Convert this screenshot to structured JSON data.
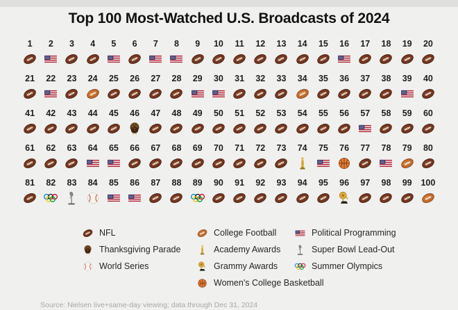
{
  "title": "Top 100 Most-Watched U.S. Broadcasts of 2024",
  "footnote": "Source: Nielsen live+same-day viewing; data through Dec 31, 2024",
  "chart_data": {
    "type": "pictogram",
    "title": "Top 100 Most-Watched U.S. Broadcasts of 2024",
    "rank_range": [
      1,
      100
    ],
    "categories_by_rank": [
      "F",
      "P",
      "F",
      "F",
      "P",
      "F",
      "P",
      "P",
      "F",
      "F",
      "F",
      "F",
      "F",
      "F",
      "F",
      "P",
      "F",
      "F",
      "F",
      "F",
      "F",
      "P",
      "F",
      "C",
      "F",
      "F",
      "F",
      "F",
      "P",
      "P",
      "F",
      "F",
      "F",
      "C",
      "F",
      "F",
      "F",
      "F",
      "P",
      "F",
      "F",
      "F",
      "F",
      "F",
      "F",
      "T",
      "F",
      "F",
      "F",
      "F",
      "F",
      "F",
      "F",
      "F",
      "F",
      "F",
      "P",
      "F",
      "F",
      "F",
      "F",
      "F",
      "F",
      "P",
      "P",
      "F",
      "F",
      "F",
      "F",
      "F",
      "F",
      "F",
      "F",
      "O",
      "P",
      "K",
      "F",
      "P",
      "C",
      "F",
      "F",
      "Y",
      "M",
      "B",
      "P",
      "P",
      "F",
      "F",
      "Y",
      "F",
      "F",
      "F",
      "F",
      "F",
      "F",
      "G",
      "F",
      "F",
      "F",
      "C"
    ],
    "code_labels": {
      "F": "NFL",
      "P": "Political Programming",
      "C": "College Football",
      "T": "Thanksgiving Parade",
      "B": "World Series",
      "O": "Academy Awards",
      "K": "Women's College Basketball",
      "Y": "Summer Olympics",
      "M": "Super Bowl Lead-Out",
      "G": "Grammy Awards"
    },
    "category_counts": {
      "NFL": 72,
      "Political Programming": 16,
      "College Football": 4,
      "Summer Olympics": 2,
      "Thanksgiving Parade": 1,
      "World Series": 1,
      "Academy Awards": 1,
      "Grammy Awards": 1,
      "Women's College Basketball": 1,
      "Super Bowl Lead-Out": 1
    },
    "legend_position": "bottom"
  },
  "grid": {
    "columns": 20,
    "rows": 5,
    "icon_by_code": {
      "F": "nfl-football",
      "P": "us-flag",
      "C": "college-football",
      "T": "turkey",
      "B": "baseball",
      "O": "oscar-statuette",
      "K": "basketball",
      "Y": "olympic-rings",
      "M": "microphone",
      "G": "grammy-gramophone"
    }
  },
  "legend": {
    "columns": [
      {
        "items": [
          {
            "icon": "nfl-football",
            "label": "NFL"
          },
          {
            "icon": "turkey",
            "label": "Thanksgiving Parade"
          },
          {
            "icon": "baseball",
            "label": "World Series"
          }
        ]
      },
      {
        "items": [
          {
            "icon": "college-football",
            "label": "College Football"
          },
          {
            "icon": "oscar-statuette",
            "label": "Academy Awards"
          },
          {
            "icon": "grammy-gramophone",
            "label": "Grammy Awards"
          },
          {
            "icon": "basketball",
            "label": "Women's College Basketball"
          }
        ]
      },
      {
        "items": [
          {
            "icon": "us-flag",
            "label": "Political Programming"
          },
          {
            "icon": "microphone",
            "label": "Super Bowl Lead-Out"
          },
          {
            "icon": "olympic-rings",
            "label": "Summer Olympics"
          }
        ]
      }
    ]
  },
  "colors": {
    "background": "#f0f0ef",
    "top_strip": "#dfdfde",
    "title_text": "#121212",
    "rank_text": "#1e1e1e",
    "footnote_text": "#a8a8a6",
    "nfl_football": "#71351d",
    "college_football": "#c06a2b",
    "flag_red": "#b22334",
    "flag_blue": "#3c3b6e"
  }
}
